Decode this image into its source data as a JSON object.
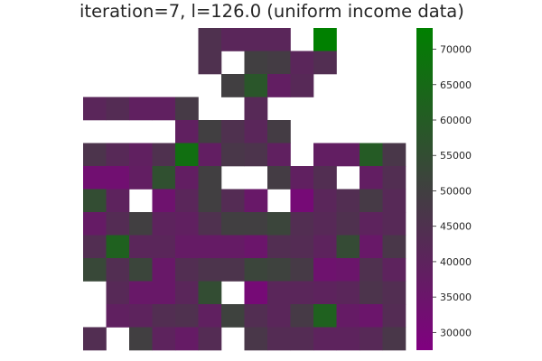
{
  "chart_data": {
    "type": "heatmap",
    "title": "iteration=7, l=126.0 (uniform income data)",
    "xlabel": "",
    "ylabel": "",
    "grid": false,
    "colorbar": {
      "min": 27500,
      "max": 73000,
      "ticks": [
        30000,
        35000,
        40000,
        45000,
        50000,
        55000,
        60000,
        65000,
        70000
      ],
      "tick_labels": [
        "30000",
        "35000",
        "40000",
        "45000",
        "50000",
        "55000",
        "60000",
        "65000",
        "70000"
      ],
      "colors": [
        "#800080",
        "#404040",
        "#008000"
      ]
    },
    "rows": 14,
    "cols": 14,
    "values": [
      [
        null,
        null,
        null,
        null,
        null,
        45000,
        41000,
        41000,
        41000,
        null,
        73000,
        null,
        null,
        null
      ],
      [
        null,
        null,
        null,
        null,
        null,
        45000,
        null,
        50000,
        49000,
        41000,
        44000,
        null,
        null,
        null
      ],
      [
        null,
        null,
        null,
        null,
        null,
        null,
        50000,
        58000,
        38000,
        42000,
        null,
        null,
        null,
        null
      ],
      [
        41000,
        43000,
        39000,
        39000,
        48000,
        null,
        null,
        42000,
        null,
        null,
        null,
        null,
        null,
        null
      ],
      [
        null,
        null,
        null,
        null,
        39000,
        50000,
        45000,
        41000,
        49000,
        null,
        null,
        null,
        null,
        null
      ],
      [
        46000,
        42000,
        39000,
        45000,
        67000,
        38000,
        47000,
        46000,
        39000,
        null,
        38000,
        38000,
        60000,
        47000
      ],
      [
        33000,
        33000,
        38000,
        56000,
        38000,
        50000,
        null,
        null,
        49000,
        39000,
        44000,
        null,
        38000,
        44000
      ],
      [
        55000,
        40000,
        null,
        34000,
        41000,
        50000,
        43000,
        36000,
        null,
        31000,
        41000,
        44000,
        48000,
        42000
      ],
      [
        37000,
        43000,
        50000,
        40000,
        39000,
        45000,
        50000,
        50000,
        52000,
        44000,
        42000,
        45000,
        40000,
        42000
      ],
      [
        44000,
        62000,
        41000,
        41000,
        37000,
        37000,
        37000,
        35000,
        44000,
        43000,
        40000,
        54000,
        36000,
        47000
      ],
      [
        53000,
        44000,
        52000,
        36000,
        44000,
        46000,
        46000,
        52000,
        51000,
        48000,
        34000,
        35000,
        45000,
        40000
      ],
      [
        null,
        42000,
        36000,
        36000,
        41000,
        55000,
        null,
        31000,
        41000,
        41000,
        40000,
        41000,
        46000,
        44000
      ],
      [
        null,
        39000,
        40000,
        44000,
        45000,
        39000,
        51000,
        44000,
        41000,
        48000,
        62000,
        37000,
        35000,
        43000
      ],
      [
        44000,
        null,
        50000,
        40000,
        37000,
        43000,
        null,
        47000,
        43000,
        43000,
        40000,
        40000,
        42000,
        47000
      ]
    ]
  }
}
